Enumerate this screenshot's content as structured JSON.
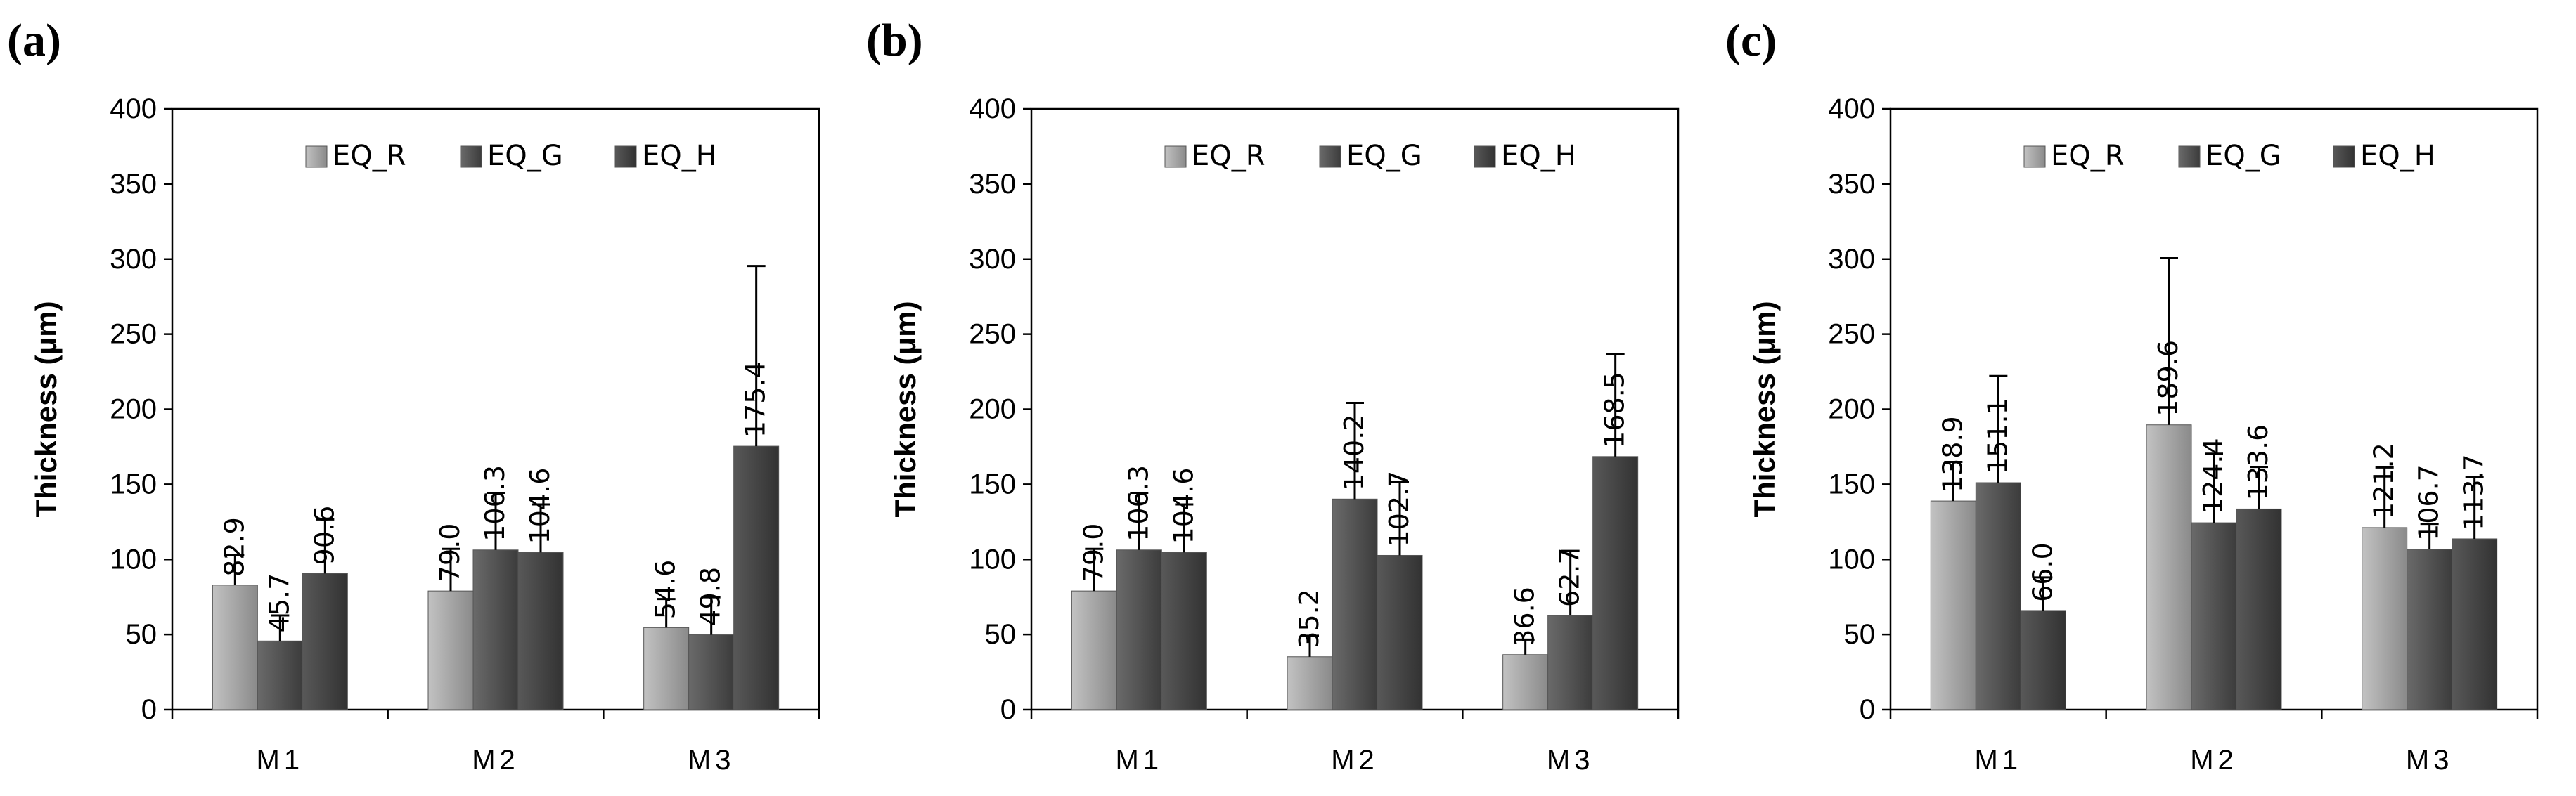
{
  "chart_data": [
    {
      "type": "bar",
      "panel_label": "(a)",
      "categories": [
        "M1",
        "M2",
        "M3"
      ],
      "series": [
        {
          "name": "EQ_R",
          "values": [
            82.9,
            79.0,
            54.6
          ],
          "errors": [
            20,
            28,
            19
          ],
          "labels": [
            "82.9",
            "79.0",
            "54.6"
          ]
        },
        {
          "name": "EQ_G",
          "values": [
            45.7,
            106.3,
            49.8
          ],
          "errors": [
            17,
            38,
            25
          ],
          "labels": [
            "45.7",
            "106.3",
            "49.8"
          ]
        },
        {
          "name": "EQ_H",
          "values": [
            90.6,
            104.6,
            175.4
          ],
          "errors": [
            36,
            32,
            120
          ],
          "labels": [
            "90.6",
            "104.6",
            "175.4"
          ]
        }
      ],
      "title": "",
      "xlabel": "",
      "ylabel": "Thickness (μm)",
      "ylim": [
        0,
        400
      ],
      "yticks": [
        "0",
        "50",
        "100",
        "150",
        "200",
        "250",
        "300",
        "350",
        "400"
      ],
      "legend": "top-center",
      "grid": false
    },
    {
      "type": "bar",
      "panel_label": "(b)",
      "categories": [
        "M1",
        "M2",
        "M3"
      ],
      "series": [
        {
          "name": "EQ_R",
          "values": [
            79.0,
            35.2,
            36.6
          ],
          "errors": [
            28,
            14,
            10
          ],
          "labels": [
            "79.0",
            "35.2",
            "36.6"
          ]
        },
        {
          "name": "EQ_G",
          "values": [
            106.3,
            140.2,
            62.7
          ],
          "errors": [
            38,
            64,
            43
          ],
          "labels": [
            "106.3",
            "140.2",
            "62.7"
          ]
        },
        {
          "name": "EQ_H",
          "values": [
            104.6,
            102.7,
            168.5
          ],
          "errors": [
            32,
            49,
            68
          ],
          "labels": [
            "104.6",
            "102.7",
            "168.5"
          ]
        }
      ],
      "title": "",
      "xlabel": "",
      "ylabel": "Thickness (μm)",
      "ylim": [
        0,
        400
      ],
      "yticks": [
        "0",
        "50",
        "100",
        "150",
        "200",
        "250",
        "300",
        "350",
        "400"
      ],
      "legend": "top-center",
      "grid": false
    },
    {
      "type": "bar",
      "panel_label": "(c)",
      "categories": [
        "M1",
        "M2",
        "M3"
      ],
      "series": [
        {
          "name": "EQ_R",
          "values": [
            138.9,
            189.6,
            121.2
          ],
          "errors": [
            26,
            111,
            40
          ],
          "labels": [
            "138.9",
            "189.6",
            "121.2"
          ]
        },
        {
          "name": "EQ_G",
          "values": [
            151.1,
            124.4,
            106.7
          ],
          "errors": [
            71,
            46,
            17
          ],
          "labels": [
            "151.1",
            "124.4",
            "106.7"
          ]
        },
        {
          "name": "EQ_H",
          "values": [
            66.0,
            133.6,
            113.7
          ],
          "errors": [
            22,
            28,
            41
          ],
          "labels": [
            "66.0",
            "133.6",
            "113.7"
          ]
        }
      ],
      "title": "",
      "xlabel": "",
      "ylabel": "Thickness (μm)",
      "ylim": [
        0,
        400
      ],
      "yticks": [
        "0",
        "50",
        "100",
        "150",
        "200",
        "250",
        "300",
        "350",
        "400"
      ],
      "legend": "top-center",
      "grid": false
    }
  ],
  "series_colors": {
    "EQ_R": [
      "#c2c2c2",
      "#8a8a8a"
    ],
    "EQ_G": [
      "#6a6a6a",
      "#3c3c3c"
    ],
    "EQ_H": [
      "#585858",
      "#323232"
    ]
  }
}
